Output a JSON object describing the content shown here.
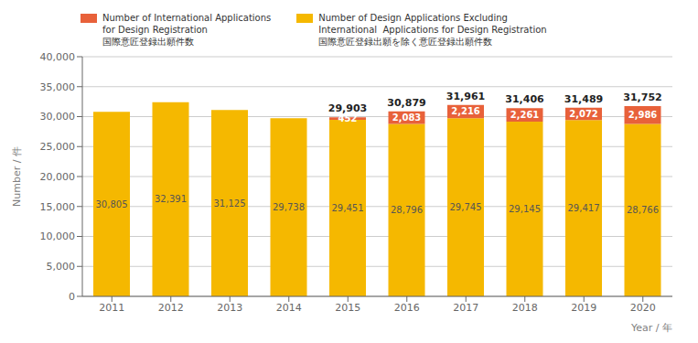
{
  "chart_data": {
    "type": "bar",
    "stacked": true,
    "grid": true,
    "data_labels": true,
    "legend": "top",
    "xlabel": "Year / 年",
    "ylabel": "Number / 件",
    "categories": [
      "2011",
      "2012",
      "2013",
      "2014",
      "2015",
      "2016",
      "2017",
      "2018",
      "2019",
      "2020"
    ],
    "series": [
      {
        "name": "Number of Design Applications Excluding\nInternational  Applications for Design Registration\n国際意匠登録出願を除く意匠登録出願件数",
        "color": "#F5B800",
        "values": [
          30805,
          32391,
          31125,
          29738,
          29451,
          28796,
          29745,
          29145,
          29417,
          28766
        ],
        "value_labels": [
          "30,805",
          "32,391",
          "31,125",
          "29,738",
          "29,451",
          "28,796",
          "29,745",
          "29,145",
          "29,417",
          "28,766"
        ]
      },
      {
        "name": "Number of International Applications\nfor Design Registration\n国際意匠登録出願件数",
        "color": "#E8613A",
        "values": [
          0,
          0,
          0,
          0,
          452,
          2083,
          2216,
          2261,
          2072,
          2986
        ],
        "value_labels": [
          null,
          null,
          null,
          null,
          "452",
          "2,083",
          "2,216",
          "2,261",
          "2,072",
          "2,986"
        ]
      }
    ],
    "totals": [
      30805,
      32391,
      31125,
      29738,
      29903,
      30879,
      31961,
      31406,
      31489,
      31752
    ],
    "totals_labels": [
      "30,805",
      "32,391",
      "31,125",
      "29,738",
      "29,903",
      "30,879",
      "31,961",
      "31,406",
      "31,489",
      "31,752"
    ],
    "ylim": [
      0,
      40000
    ],
    "yticks": [
      0,
      {
        "value": 5000,
        "label": "5,000"
      },
      {
        "value": 10000,
        "label": "10,000"
      },
      {
        "value": 15000,
        "label": "15,000"
      },
      {
        "value": 20000,
        "label": "20,000"
      },
      {
        "value": 25000,
        "label": "25,000"
      },
      {
        "value": 30000,
        "label": "30,000"
      },
      {
        "value": 35000,
        "label": "35,000"
      },
      {
        "value": 40000,
        "label": "40,000"
      }
    ]
  }
}
